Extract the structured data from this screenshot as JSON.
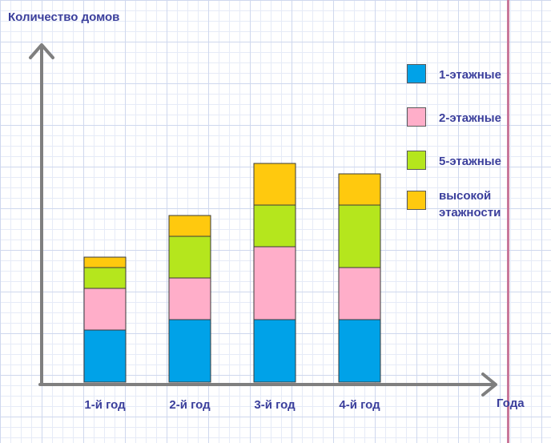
{
  "chart_data": {
    "type": "bar",
    "stacked": true,
    "ylabel": "Количество домов",
    "xlabel": "Года",
    "categories": [
      "1-й год",
      "2-й год",
      "3-й год",
      "4-й год"
    ],
    "series": [
      {
        "name": "1-этажные",
        "color": "#00a2e8",
        "values": [
          5,
          6,
          6,
          6
        ]
      },
      {
        "name": "2-этажные",
        "color": "#ffaec9",
        "values": [
          4,
          4,
          7,
          5
        ]
      },
      {
        "name": "5-этажные",
        "color": "#b5e61d",
        "values": [
          2,
          4,
          4,
          6
        ]
      },
      {
        "name": "высокой этажности",
        "color": "#ffc90e",
        "values": [
          1,
          2,
          4,
          3
        ]
      }
    ],
    "ylim": [
      0,
      31
    ],
    "grid": true,
    "legend": "top-right"
  },
  "legend_lines": [
    [
      "1-этажные"
    ],
    [
      "2-этажные"
    ],
    [
      "5-этажные"
    ],
    [
      "высокой",
      "этажности"
    ]
  ],
  "colors": {
    "axis": "#7f7f7f",
    "text": "#3b3f9c",
    "margin_line": "#c9779a"
  }
}
